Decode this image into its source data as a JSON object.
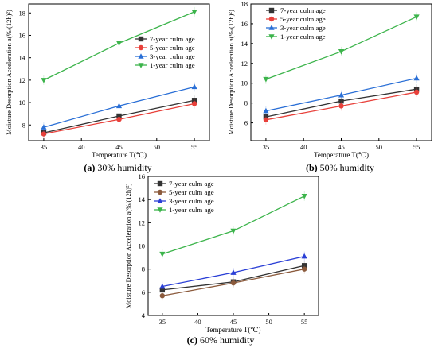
{
  "chart_data": [
    {
      "type": "line",
      "panel_letter": "(a)",
      "caption": "30% humidity",
      "xlabel": "Temperature T(℃)",
      "ylabel": "Moisture Desorption Acceleration a(%/(12h)²)",
      "x": [
        35,
        45,
        55
      ],
      "xticks": [
        35,
        40,
        45,
        50,
        55
      ],
      "xlim": [
        33,
        57
      ],
      "ylim": [
        6.6,
        18.8
      ],
      "yticks": [
        8,
        10,
        12,
        14,
        16,
        18
      ],
      "grid": false,
      "legend_position": "right",
      "series": [
        {
          "name": "7-year culm age",
          "color": "#333333",
          "marker": "square",
          "values": [
            7.3,
            8.8,
            10.2
          ]
        },
        {
          "name": "5-year culm age",
          "color": "#e8403a",
          "marker": "circle",
          "values": [
            7.2,
            8.5,
            9.9
          ]
        },
        {
          "name": "3-year culm age",
          "color": "#2a6fd6",
          "marker": "triangle-up",
          "values": [
            7.8,
            9.7,
            11.4
          ]
        },
        {
          "name": "1-year culm age",
          "color": "#3cb44b",
          "marker": "triangle-down",
          "values": [
            12.0,
            15.3,
            18.1
          ]
        }
      ]
    },
    {
      "type": "line",
      "panel_letter": "(b)",
      "caption": "50% humidity",
      "xlabel": "Temperature T(℃)",
      "ylabel": "Moisture Desorption Acceleration a(%/(12h)²)",
      "x": [
        35,
        45,
        55
      ],
      "xticks": [
        35,
        40,
        45,
        50,
        55
      ],
      "xlim": [
        33,
        57
      ],
      "ylim": [
        4.2,
        18
      ],
      "yticks": [
        6,
        8,
        10,
        12,
        14,
        16,
        18
      ],
      "grid": false,
      "legend_position": "top-left",
      "series": [
        {
          "name": "7-year culm age",
          "color": "#333333",
          "marker": "square",
          "values": [
            6.6,
            8.2,
            9.4
          ]
        },
        {
          "name": "5-year culm age",
          "color": "#e8403a",
          "marker": "circle",
          "values": [
            6.3,
            7.7,
            9.1
          ]
        },
        {
          "name": "3-year culm age",
          "color": "#2a6fd6",
          "marker": "triangle-up",
          "values": [
            7.2,
            8.8,
            10.5
          ]
        },
        {
          "name": "1-year culm age",
          "color": "#3cb44b",
          "marker": "triangle-down",
          "values": [
            10.4,
            13.2,
            16.7
          ]
        }
      ]
    },
    {
      "type": "line",
      "panel_letter": "(c)",
      "caption": "60% humidity",
      "xlabel": "Temperature T(℃)",
      "ylabel": "Moisture Desorption Acceleration a(%/(12h)²)",
      "x": [
        35,
        45,
        55
      ],
      "xticks": [
        35,
        40,
        45,
        50,
        55
      ],
      "xlim": [
        33,
        57
      ],
      "ylim": [
        4,
        16
      ],
      "yticks": [
        4,
        6,
        8,
        10,
        12,
        14,
        16
      ],
      "grid": false,
      "legend_position": "top-left",
      "series": [
        {
          "name": "7-year culm age",
          "color": "#333333",
          "marker": "square",
          "values": [
            6.2,
            6.9,
            8.3
          ]
        },
        {
          "name": "5-year culm age",
          "color": "#8b5a3c",
          "marker": "circle",
          "values": [
            5.7,
            6.8,
            8.0
          ]
        },
        {
          "name": "3-year culm age",
          "color": "#2a3fd6",
          "marker": "triangle-up",
          "values": [
            6.5,
            7.7,
            9.1
          ]
        },
        {
          "name": "1-year culm age",
          "color": "#3cb44b",
          "marker": "triangle-down",
          "values": [
            9.3,
            11.3,
            14.3
          ]
        }
      ]
    }
  ]
}
